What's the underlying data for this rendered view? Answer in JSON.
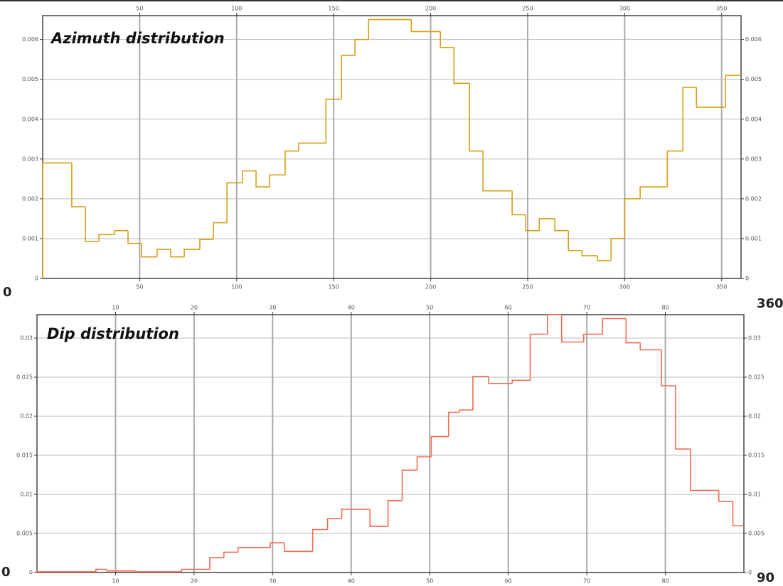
{
  "chart_data": [
    {
      "type": "step",
      "title": "Azimuth distribution",
      "color": "#d4a017",
      "x": [
        0,
        15,
        22,
        29,
        37,
        44,
        51,
        59,
        66,
        73,
        81,
        88,
        95,
        103,
        110,
        117,
        125,
        132,
        146,
        154,
        161,
        168,
        190,
        205,
        212,
        220,
        227,
        242,
        249,
        256,
        264,
        271,
        278,
        286,
        293,
        300,
        308,
        322,
        330,
        337,
        352
      ],
      "values": [
        0.0029,
        0.0018,
        0.00093,
        0.0011,
        0.0012,
        0.00088,
        0.00054,
        0.00073,
        0.00054,
        0.00073,
        0.00098,
        0.0014,
        0.0024,
        0.0027,
        0.0023,
        0.0026,
        0.0032,
        0.0034,
        0.0045,
        0.0056,
        0.006,
        0.0065,
        0.0062,
        0.0058,
        0.0049,
        0.0032,
        0.0022,
        0.0016,
        0.0012,
        0.0015,
        0.0012,
        0.0007,
        0.00057,
        0.00045,
        0.001,
        0.002,
        0.0023,
        0.0032,
        0.0048,
        0.0043,
        0.0051
      ],
      "xlim": [
        0,
        360
      ],
      "ylim": [
        0,
        0.0066
      ],
      "xticks": [
        50,
        100,
        150,
        200,
        250,
        300,
        350
      ],
      "yticks": [
        0,
        0.001,
        0.002,
        0.003,
        0.004,
        0.005,
        0.006
      ],
      "grid": true
    },
    {
      "type": "step",
      "title": "Dip distribution",
      "color": "#f26b50",
      "x": [
        0,
        7.5,
        8.9,
        12.5,
        18.4,
        22,
        23.8,
        25.6,
        29.7,
        31.5,
        35.1,
        37,
        38.8,
        42.4,
        44.7,
        46.5,
        48.4,
        50.2,
        52.4,
        53.8,
        55.5,
        57.5,
        60.5,
        62.8,
        65,
        66.8,
        69.6,
        72,
        75,
        76.8,
        79.5,
        81.3,
        83.2,
        86.8,
        88.6
      ],
      "values": [
        0.0001,
        0.0004,
        0.0002,
        0.0001,
        0.0004,
        0.0019,
        0.0026,
        0.0032,
        0.0038,
        0.0027,
        0.0055,
        0.0069,
        0.0081,
        0.0059,
        0.0092,
        0.0131,
        0.0148,
        0.0174,
        0.0205,
        0.0208,
        0.0251,
        0.0242,
        0.0246,
        0.0305,
        0.033,
        0.0295,
        0.0305,
        0.0325,
        0.0294,
        0.0285,
        0.0239,
        0.0158,
        0.0105,
        0.0091,
        0.006
      ],
      "xlim": [
        0,
        90
      ],
      "ylim": [
        0,
        0.033
      ],
      "xticks": [
        10,
        20,
        30,
        40,
        50,
        60,
        70,
        80
      ],
      "yticks": [
        0,
        0.005,
        0.01,
        0.015,
        0.02,
        0.025,
        0.03
      ],
      "grid": true
    }
  ]
}
